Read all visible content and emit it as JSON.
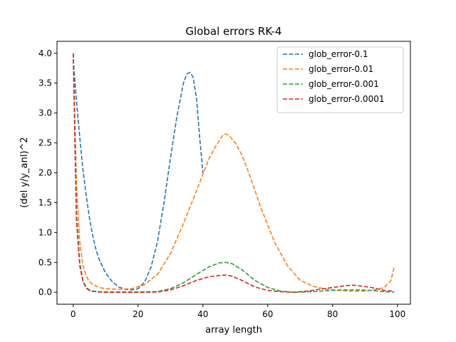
{
  "chart_data": {
    "type": "line",
    "title": "Global errors RK-4",
    "xlabel": "array length",
    "ylabel": "(del y/y_anl)^2",
    "xlim": [
      -5,
      104
    ],
    "ylim": [
      -0.2,
      4.2
    ],
    "xticks": [
      0,
      20,
      40,
      60,
      80,
      100
    ],
    "yticks": [
      0.0,
      0.5,
      1.0,
      1.5,
      2.0,
      2.5,
      3.0,
      3.5,
      4.0
    ],
    "grid": false,
    "legend_position": "top-right",
    "series": [
      {
        "name": "glob_error-0.1",
        "color": "#1f77b4",
        "x": [
          0,
          1,
          2,
          3,
          4,
          5,
          6,
          7,
          8,
          10,
          12,
          14,
          16,
          18,
          20,
          22,
          24,
          26,
          28,
          30,
          32,
          34,
          35,
          36,
          37,
          38,
          39,
          40
        ],
        "y": [
          3.9,
          3.2,
          2.6,
          2.05,
          1.62,
          1.25,
          0.95,
          0.72,
          0.55,
          0.32,
          0.18,
          0.09,
          0.05,
          0.04,
          0.06,
          0.17,
          0.42,
          0.85,
          1.5,
          2.25,
          2.95,
          3.5,
          3.65,
          3.68,
          3.6,
          3.25,
          2.6,
          2.0
        ]
      },
      {
        "name": "glob_error-0.01",
        "color": "#ff7f0e",
        "x": [
          0,
          1,
          2,
          3,
          4,
          5,
          6,
          8,
          10,
          14,
          18,
          22,
          26,
          30,
          34,
          38,
          42,
          44,
          46,
          47,
          48,
          50,
          52,
          54,
          58,
          62,
          66,
          70,
          74,
          78,
          82,
          86,
          90,
          94,
          96,
          98,
          99
        ],
        "y": [
          4.0,
          1.8,
          0.85,
          0.45,
          0.27,
          0.18,
          0.13,
          0.08,
          0.06,
          0.05,
          0.06,
          0.13,
          0.3,
          0.65,
          1.15,
          1.7,
          2.25,
          2.45,
          2.62,
          2.65,
          2.63,
          2.5,
          2.3,
          2.02,
          1.4,
          0.85,
          0.45,
          0.2,
          0.1,
          0.05,
          0.03,
          0.02,
          0.02,
          0.05,
          0.08,
          0.2,
          0.42
        ]
      },
      {
        "name": "glob_error-0.001",
        "color": "#2ca02c",
        "x": [
          0,
          1,
          2,
          3,
          4,
          5,
          6,
          8,
          10,
          14,
          18,
          22,
          26,
          30,
          34,
          38,
          42,
          45,
          47,
          49,
          52,
          56,
          60,
          64,
          68,
          72,
          76,
          80,
          84,
          88,
          92,
          96,
          99
        ],
        "y": [
          4.0,
          1.3,
          0.5,
          0.2,
          0.08,
          0.04,
          0.02,
          0.01,
          0.005,
          0.005,
          0.005,
          0.005,
          0.01,
          0.06,
          0.16,
          0.3,
          0.43,
          0.49,
          0.5,
          0.48,
          0.38,
          0.2,
          0.08,
          0.02,
          0.0,
          0.005,
          0.02,
          0.035,
          0.04,
          0.04,
          0.03,
          0.01,
          0.0
        ]
      },
      {
        "name": "glob_error-0.0001",
        "color": "#d62728",
        "x": [
          0,
          1,
          2,
          3,
          4,
          5,
          6,
          8,
          10,
          14,
          18,
          22,
          26,
          30,
          34,
          38,
          42,
          45,
          47,
          49,
          52,
          56,
          60,
          64,
          68,
          72,
          76,
          80,
          84,
          86,
          88,
          92,
          96,
          99
        ],
        "y": [
          4.0,
          1.2,
          0.45,
          0.18,
          0.07,
          0.03,
          0.015,
          0.005,
          0.0,
          0.0,
          0.0,
          0.0,
          0.005,
          0.04,
          0.11,
          0.2,
          0.26,
          0.28,
          0.29,
          0.27,
          0.2,
          0.09,
          0.03,
          0.01,
          0.0,
          0.02,
          0.05,
          0.08,
          0.11,
          0.12,
          0.11,
          0.08,
          0.03,
          0.02
        ]
      }
    ]
  }
}
